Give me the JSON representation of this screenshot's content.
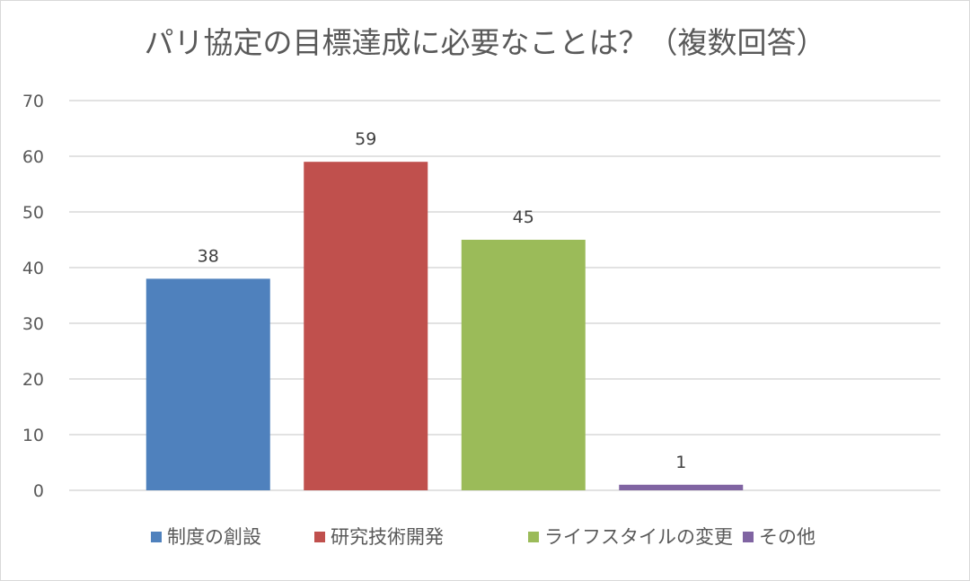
{
  "chart_data": {
    "type": "bar",
    "title": "パリ協定の目標達成に必要なことは？（複数回答）",
    "categories": [
      "制度の創設",
      "研究技術開発",
      "ライフスタイルの変更",
      "その他"
    ],
    "values": [
      38,
      59,
      45,
      1
    ],
    "colors": [
      "#4f81bd",
      "#c0504d",
      "#9bbb59",
      "#8064a2"
    ],
    "ylim": [
      0,
      70
    ],
    "yticks": [
      0,
      10,
      20,
      30,
      40,
      50,
      60,
      70
    ],
    "xlabel": "",
    "ylabel": "",
    "grid": true,
    "legend": "bottom",
    "data_labels": true,
    "gridline_color": "#d9d9d9",
    "text_color": "#595959"
  }
}
